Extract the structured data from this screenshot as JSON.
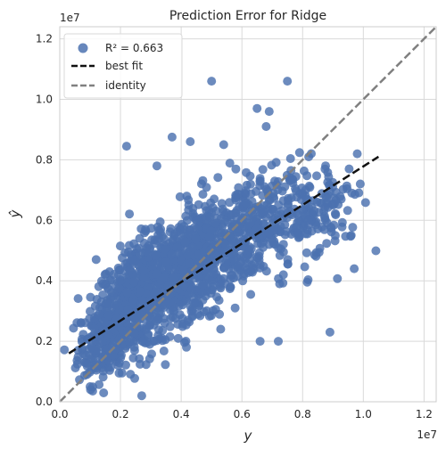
{
  "chart_data": {
    "type": "scatter",
    "title": "Prediction Error for Ridge",
    "xlabel": "y",
    "ylabel": "ŷ",
    "x_offset_label": "1e7",
    "y_offset_label": "1e7",
    "xlim": [
      0,
      1.24
    ],
    "ylim": [
      0,
      1.24
    ],
    "x_ticks": [
      0.0,
      0.2,
      0.4,
      0.6,
      0.8,
      1.0,
      1.2
    ],
    "y_ticks": [
      0.0,
      0.2,
      0.4,
      0.6,
      0.8,
      1.0,
      1.2
    ],
    "x_tick_labels": [
      "0.0",
      "0.2",
      "0.4",
      "0.6",
      "0.8",
      "1.0",
      "1.2"
    ],
    "y_tick_labels": [
      "0.0",
      "0.2",
      "0.4",
      "0.6",
      "0.8",
      "1.0",
      "1.2"
    ],
    "grid": true,
    "legend_position": "top-left",
    "legend": {
      "r2_label": "R² = 0.663",
      "best_fit_label": "best fit",
      "identity_label": "identity"
    },
    "best_fit": {
      "x": [
        0.03,
        1.05
      ],
      "y": [
        0.16,
        0.81
      ]
    },
    "identity": {
      "x": [
        0,
        1.24
      ],
      "y": [
        0,
        1.24
      ]
    },
    "colors": {
      "points": "#4c72b0",
      "best_fit": "#111111",
      "identity": "#808080",
      "grid": "#d9d9d9",
      "axes": "#cccccc"
    },
    "outliers": [
      {
        "x": 0.85,
        "y": 1.24
      },
      {
        "x": 0.5,
        "y": 1.06
      },
      {
        "x": 0.75,
        "y": 1.06
      },
      {
        "x": 0.65,
        "y": 0.97
      },
      {
        "x": 0.69,
        "y": 0.96
      },
      {
        "x": 0.68,
        "y": 0.91
      },
      {
        "x": 0.22,
        "y": 0.845
      },
      {
        "x": 0.37,
        "y": 0.875
      },
      {
        "x": 0.27,
        "y": 0.02
      },
      {
        "x": 0.72,
        "y": 0.2
      },
      {
        "x": 0.66,
        "y": 0.2
      },
      {
        "x": 0.53,
        "y": 0.24
      },
      {
        "x": 0.82,
        "y": 0.81
      },
      {
        "x": 0.98,
        "y": 0.82
      },
      {
        "x": 0.99,
        "y": 0.72
      },
      {
        "x": 0.96,
        "y": 0.55
      },
      {
        "x": 0.97,
        "y": 0.44
      },
      {
        "x": 0.32,
        "y": 0.78
      },
      {
        "x": 0.12,
        "y": 0.47
      },
      {
        "x": 0.07,
        "y": 0.26
      },
      {
        "x": 0.09,
        "y": 0.09
      },
      {
        "x": 0.1,
        "y": 0.05
      },
      {
        "x": 0.89,
        "y": 0.23
      },
      {
        "x": 0.54,
        "y": 0.85
      },
      {
        "x": 0.43,
        "y": 0.86
      }
    ],
    "point_clusters": [
      {
        "x_center": 0.16,
        "y_center": 0.22,
        "spread_x": 0.05,
        "spread_y": 0.07,
        "n": 260
      },
      {
        "x_center": 0.26,
        "y_center": 0.34,
        "spread_x": 0.07,
        "spread_y": 0.09,
        "n": 420
      },
      {
        "x_center": 0.38,
        "y_center": 0.42,
        "spread_x": 0.07,
        "spread_y": 0.09,
        "n": 420
      },
      {
        "x_center": 0.5,
        "y_center": 0.5,
        "spread_x": 0.07,
        "spread_y": 0.09,
        "n": 300
      },
      {
        "x_center": 0.62,
        "y_center": 0.56,
        "spread_x": 0.07,
        "spread_y": 0.09,
        "n": 200
      },
      {
        "x_center": 0.76,
        "y_center": 0.62,
        "spread_x": 0.07,
        "spread_y": 0.09,
        "n": 130
      },
      {
        "x_center": 0.9,
        "y_center": 0.63,
        "spread_x": 0.05,
        "spread_y": 0.09,
        "n": 70
      }
    ]
  }
}
